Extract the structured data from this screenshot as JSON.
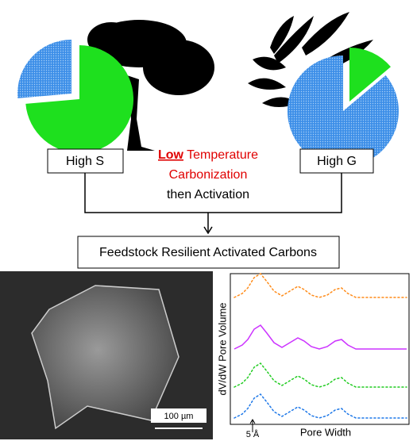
{
  "left_box": {
    "label": "High S"
  },
  "right_box": {
    "label": "High G"
  },
  "process": {
    "highlight": "Low",
    "line1_rest": "Temperature",
    "line2": "Carbonization",
    "line3": "then Activation"
  },
  "result_box": {
    "label": "Feedstock Resilient Activated Carbons"
  },
  "micrograph": {
    "scale_bar": "100 µm"
  },
  "plot": {
    "y_label": "dV/dW Pore Volume",
    "x_label": "Pore Width",
    "marker_label": "5 Å"
  }
}
